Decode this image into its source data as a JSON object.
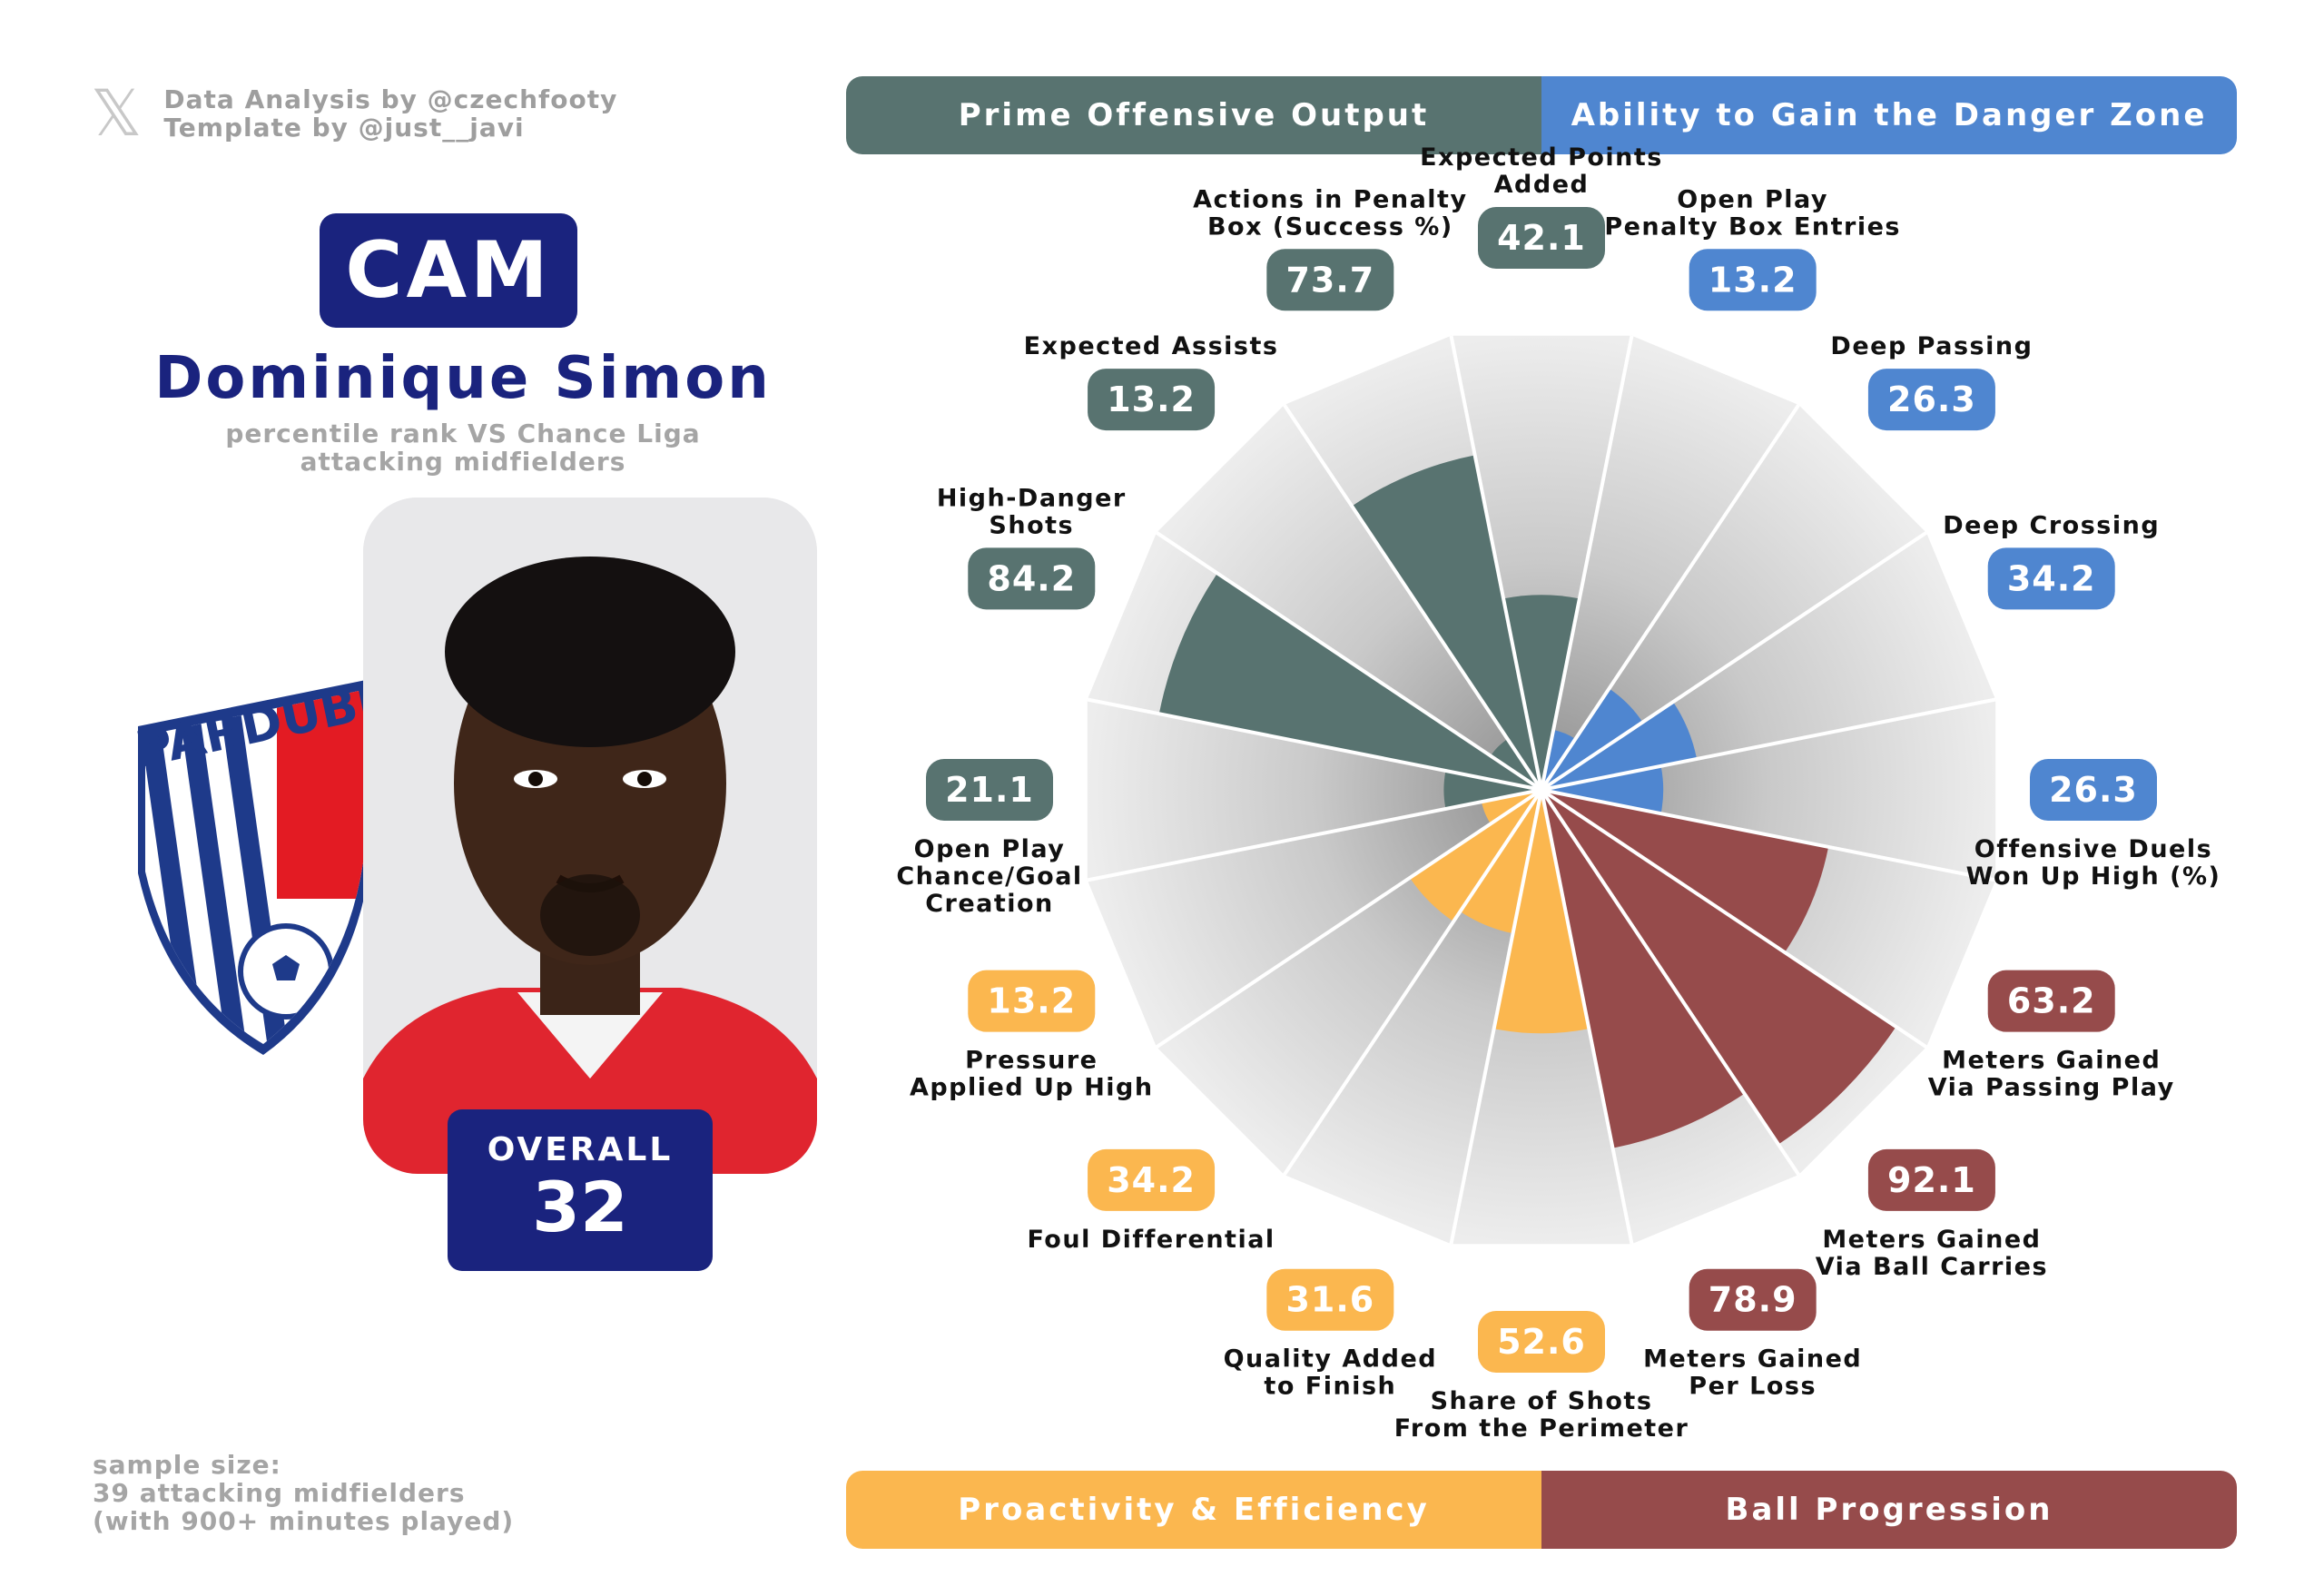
{
  "credits": {
    "x_icon": "x-logo-icon",
    "line1": "Data Analysis by @czechfooty",
    "line2": "Template by @just__javi"
  },
  "player": {
    "position": "CAM",
    "name": "Dominique Simon",
    "subtitle_line1": "percentile rank VS Chance Liga",
    "subtitle_line2": "attacking midfielders",
    "club_crest_text": "PARDUBICE",
    "overall_label": "OVERALL",
    "overall_value": "32"
  },
  "sample": {
    "line1": "sample size:",
    "line2": "39 attacking midfielders",
    "line3": "(with 900+ minutes played)"
  },
  "categories": {
    "prime": {
      "label": "Prime Offensive Output",
      "color": "#587370"
    },
    "danger": {
      "label": "Ability to Gain the Danger Zone",
      "color": "#4f86d0"
    },
    "proactivity": {
      "label": "Proactivity & Efficiency",
      "color": "#fbb74f"
    },
    "progression": {
      "label": "Ball Progression",
      "color": "#964b4b"
    }
  },
  "chart_data": {
    "type": "radar-bar",
    "scale": [
      0,
      100
    ],
    "metrics": [
      {
        "label": [
          "Expected Points",
          "Added"
        ],
        "value": 42.1,
        "group": "prime"
      },
      {
        "label": [
          "Open Play",
          "Penalty Box Entries"
        ],
        "value": 13.2,
        "group": "danger"
      },
      {
        "label": [
          "Deep Passing"
        ],
        "value": 26.3,
        "group": "danger"
      },
      {
        "label": [
          "Deep Crossing"
        ],
        "value": 34.2,
        "group": "danger"
      },
      {
        "label": [
          "Offensive Duels",
          "Won Up High (%)"
        ],
        "value": 26.3,
        "group": "danger"
      },
      {
        "label": [
          "Meters Gained",
          "Via Passing Play"
        ],
        "value": 63.2,
        "group": "progression"
      },
      {
        "label": [
          "Meters Gained",
          "Via Ball Carries"
        ],
        "value": 92.1,
        "group": "progression"
      },
      {
        "label": [
          "Meters Gained",
          "Per Loss"
        ],
        "value": 78.9,
        "group": "progression"
      },
      {
        "label": [
          "Share of Shots",
          "From the Perimeter"
        ],
        "value": 52.6,
        "group": "proactivity"
      },
      {
        "label": [
          "Quality Added",
          "to Finish"
        ],
        "value": 31.6,
        "group": "proactivity"
      },
      {
        "label": [
          "Foul Differential"
        ],
        "value": 34.2,
        "group": "proactivity"
      },
      {
        "label": [
          "Pressure",
          "Applied Up High"
        ],
        "value": 13.2,
        "group": "proactivity"
      },
      {
        "label": [
          "Open Play",
          "Chance/Goal",
          "Creation"
        ],
        "value": 21.1,
        "group": "prime"
      },
      {
        "label": [
          "High-Danger",
          "Shots"
        ],
        "value": 84.2,
        "group": "prime"
      },
      {
        "label": [
          "Expected Assists"
        ],
        "value": 13.2,
        "group": "prime"
      },
      {
        "label": [
          "Actions in Penalty",
          "Box (Success %)"
        ],
        "value": 73.7,
        "group": "prime"
      }
    ]
  }
}
